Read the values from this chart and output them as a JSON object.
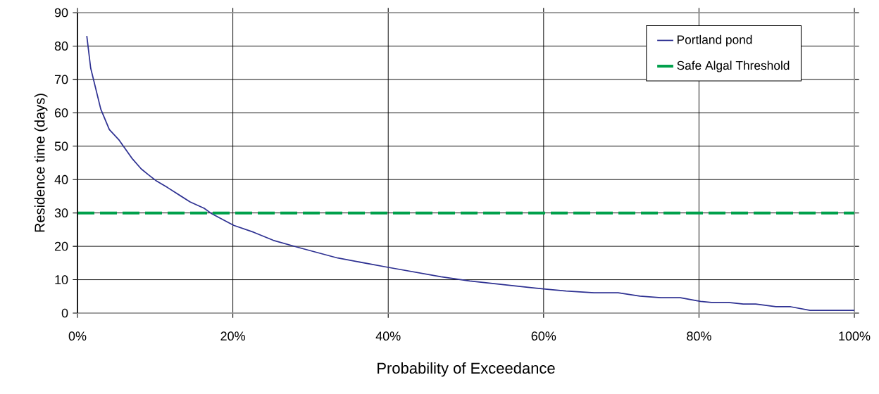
{
  "chart_data": {
    "type": "line",
    "xlabel": "Probability of Exceedance",
    "ylabel": "Residence time (days)",
    "xlim": [
      0,
      100
    ],
    "ylim": [
      0,
      90
    ],
    "xticks": [
      {
        "value": 0,
        "label": "0%"
      },
      {
        "value": 20,
        "label": "20%"
      },
      {
        "value": 40,
        "label": "40%"
      },
      {
        "value": 60,
        "label": "60%"
      },
      {
        "value": 80,
        "label": "80%"
      },
      {
        "value": 100,
        "label": "100%"
      }
    ],
    "yticks": [
      0,
      10,
      20,
      30,
      40,
      50,
      60,
      70,
      80,
      90
    ],
    "grid": true,
    "legend": "top right",
    "marker": "none",
    "series": [
      {
        "name": "Portland pond",
        "color": "#2e3192",
        "line_style": "solid",
        "x": [
          1.2,
          1.7,
          3.0,
          4.1,
          5.3,
          7.0,
          8.2,
          9.1,
          10.1,
          11.6,
          14.5,
          16.3,
          17.2,
          20.1,
          22.7,
          25.2,
          28.7,
          33.5,
          40.0,
          46.8,
          50.5,
          58.0,
          60.2,
          62.9,
          66.5,
          69.6,
          72.4,
          75.1,
          77.6,
          80.2,
          81.6,
          83.8,
          85.7,
          87.3,
          89.9,
          91.8,
          94.3,
          100
        ],
        "values": [
          83,
          73.4,
          61.1,
          55,
          52,
          46.4,
          43.2,
          41.5,
          39.7,
          37.6,
          33.3,
          31.4,
          29.9,
          26.3,
          24.2,
          21.8,
          19.5,
          16.5,
          13.7,
          10.9,
          9.6,
          7.7,
          7.2,
          6.6,
          6.1,
          6.1,
          5.1,
          4.6,
          4.6,
          3.5,
          3.2,
          3.2,
          2.7,
          2.7,
          1.9,
          1.9,
          0.8,
          0.8
        ]
      }
    ],
    "ref_lines": [
      {
        "axis": "y",
        "value": 30,
        "label": "Safe Algal Threshold",
        "color": "#00a04b",
        "line_style": "dashed"
      }
    ]
  }
}
